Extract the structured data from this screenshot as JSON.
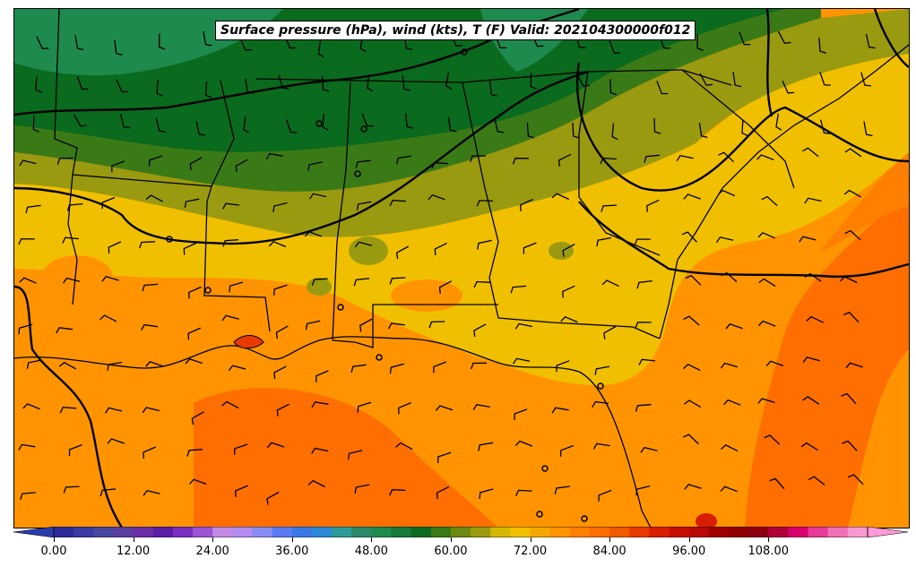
{
  "title": "Surface pressure (hPa), wind (kts), T (F) Valid: 202104300000f012",
  "colorbar": {
    "tick_labels": [
      "0.00",
      "12.00",
      "24.00",
      "36.00",
      "48.00",
      "60.00",
      "72.00",
      "84.00",
      "96.00",
      "108.00"
    ],
    "colors": [
      "#2b2b9b",
      "#3a3aa3",
      "#47479f",
      "#5a3d9e",
      "#6b2ea6",
      "#5a1fa8",
      "#7a2fc2",
      "#9a54d6",
      "#c28ae6",
      "#b08cf0",
      "#8a8cf5",
      "#5a7af5",
      "#3a78e8",
      "#2a8ad8",
      "#2b9a9a",
      "#2a8a6a",
      "#1f8a4e",
      "#167a3a",
      "#0a6a1e",
      "#3a7a16",
      "#6a8a10",
      "#9a9a10",
      "#d4b800",
      "#f0c000",
      "#f5a800",
      "#ff9400",
      "#ff8000",
      "#ff6e00",
      "#f25a00",
      "#e83a00",
      "#d81e00",
      "#c80e00",
      "#b80808",
      "#a00000",
      "#900000",
      "#8a0010",
      "#b0003a",
      "#d8006e",
      "#e83a98",
      "#f070b8",
      "#f89ad0"
    ],
    "under_color": "#2a3aa8",
    "over_color": "#ff9ad8"
  },
  "fields": {
    "temperature_unit": "F",
    "pressure_unit": "hPa",
    "wind_unit": "kts"
  }
}
